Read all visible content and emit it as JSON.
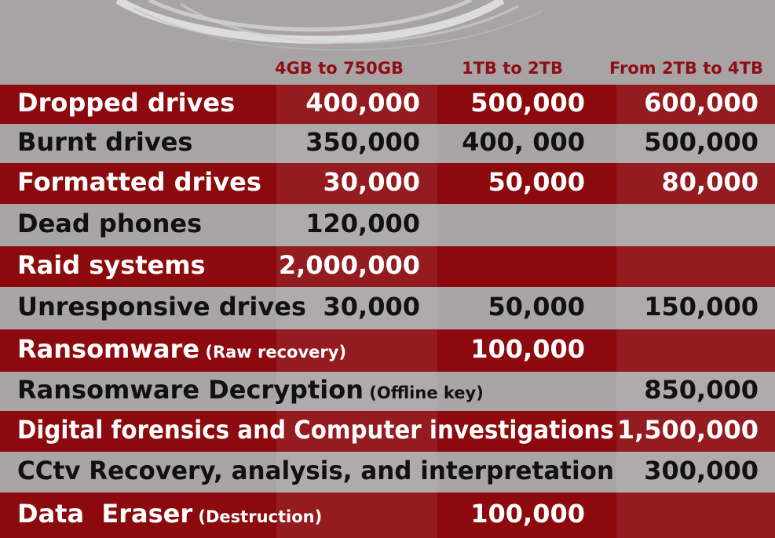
{
  "columns": [
    "4GB to 750GB",
    "1TB to 2TB",
    "From 2TB to 4TB"
  ],
  "rows": [
    {
      "label": "Dropped drives",
      "c1": "400,000",
      "c2": "500,000",
      "c3": "600,000",
      "style": "red"
    },
    {
      "label": "Burnt drives",
      "c1": "350,000",
      "c2": "400, 000",
      "c3": "500,000",
      "style": "grey"
    },
    {
      "label": "Formatted drives",
      "c1": "30,000",
      "c2": "50,000",
      "c3": "80,000",
      "style": "red"
    },
    {
      "label": "Dead phones",
      "c1": "120,000",
      "style": "grey"
    },
    {
      "label": "Raid systems",
      "c1": "2,000,000",
      "style": "red"
    },
    {
      "label": "Unresponsive drives",
      "c1": "30,000",
      "c2": "50,000",
      "c3": "150,000",
      "style": "grey"
    },
    {
      "label": "Ransomware",
      "note": "(Raw recovery)",
      "c2": "100,000",
      "style": "red"
    },
    {
      "label": "Ransomware Decryption",
      "note": "(Offline key)",
      "c3": "850,000",
      "style": "grey"
    },
    {
      "label": "Digital forensics and Computer investigations",
      "c3": "1,500,000",
      "style": "red"
    },
    {
      "label": "CCtv Recovery, analysis, and interpretation",
      "c3": "300,000",
      "style": "grey"
    },
    {
      "label": "Data  Eraser",
      "note": "(Destruction)",
      "c2": "100,000",
      "style": "red"
    }
  ],
  "colors": {
    "red": "#8c0a0e",
    "grey": "#a9a5a6",
    "header": "#8e0e14"
  }
}
